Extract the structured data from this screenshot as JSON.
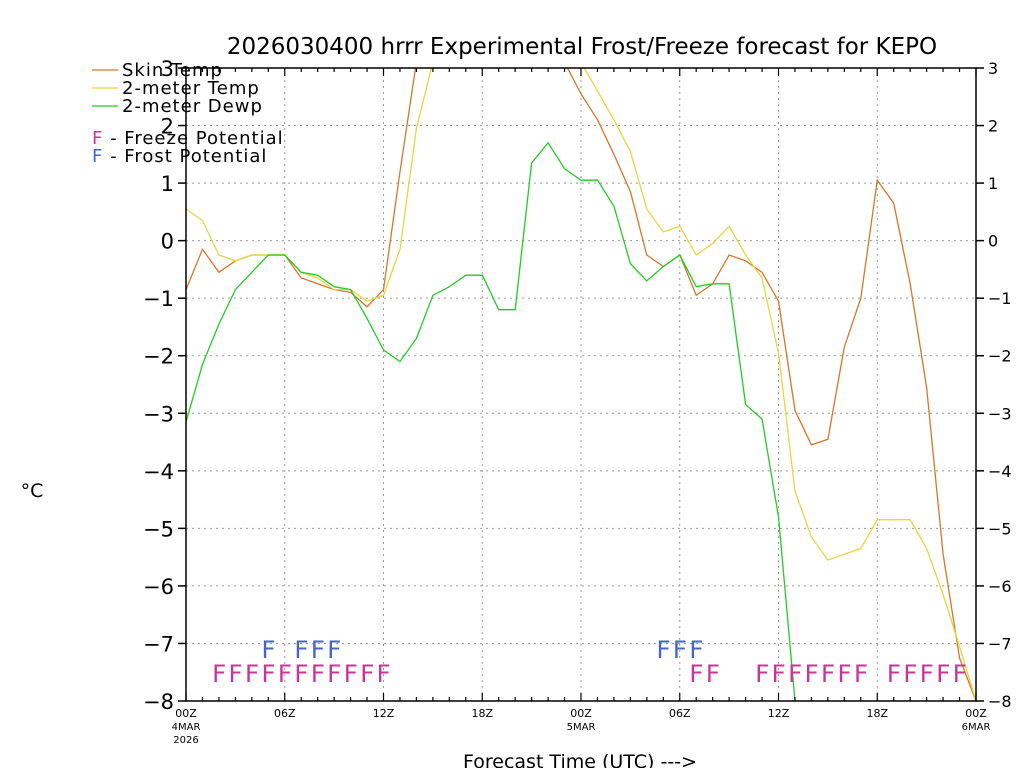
{
  "chart_data": {
    "type": "line",
    "title": "2026030400 hrrr Experimental Frost/Freeze forecast for KEPO",
    "xlabel": "Forecast Time (UTC) --->",
    "ylabel": "°C",
    "ylim": [
      -8,
      3
    ],
    "xlim": [
      0,
      48
    ],
    "grid": true,
    "yticks": [
      "-8",
      "-7",
      "-6",
      "-5",
      "-4",
      "-3",
      "-2",
      "-1",
      "0",
      "1",
      "2",
      "3"
    ],
    "xticks": [
      {
        "hour": 0,
        "label": "00Z",
        "sub1": "4MAR",
        "sub2": "2026"
      },
      {
        "hour": 6,
        "label": "06Z"
      },
      {
        "hour": 12,
        "label": "12Z"
      },
      {
        "hour": 18,
        "label": "18Z"
      },
      {
        "hour": 24,
        "label": "00Z",
        "sub1": "5MAR"
      },
      {
        "hour": 30,
        "label": "06Z"
      },
      {
        "hour": 36,
        "label": "12Z"
      },
      {
        "hour": 42,
        "label": "18Z"
      },
      {
        "hour": 48,
        "label": "00Z",
        "sub1": "6MAR"
      }
    ],
    "legend": {
      "placement": "top-left",
      "entries": [
        "Skin Temp",
        "2-meter Temp",
        "2-meter Dewp"
      ],
      "markers": [
        {
          "char": "F",
          "text": " - Freeze Potential",
          "color": "#cc3399"
        },
        {
          "char": "F",
          "text": " - Frost Potential",
          "color": "#4466cc"
        }
      ]
    },
    "series": [
      {
        "name": "Skin Temp",
        "color": "#d9752a",
        "x": [
          0,
          1,
          2,
          3,
          4,
          5,
          6,
          7,
          8,
          9,
          10,
          11,
          12,
          13,
          14,
          23,
          24,
          25,
          26,
          27,
          28,
          29,
          30,
          31,
          32,
          33,
          34,
          35,
          36,
          37,
          38,
          39,
          40,
          41,
          42,
          43,
          44,
          45,
          46,
          47,
          48
        ],
        "values": [
          -0.85,
          -0.15,
          -0.55,
          -0.35,
          -0.25,
          -0.25,
          -0.25,
          -0.65,
          -0.75,
          -0.85,
          -0.9,
          -1.15,
          -0.85,
          1.2,
          3.1,
          3.1,
          2.55,
          2.1,
          1.5,
          0.85,
          -0.25,
          -0.45,
          -0.25,
          -0.95,
          -0.75,
          -0.25,
          -0.35,
          -0.55,
          -1.05,
          -2.95,
          -3.55,
          -3.45,
          -1.85,
          -1.0,
          1.05,
          0.65,
          -0.75,
          -2.55,
          -5.45,
          -7.25,
          -8.0
        ]
      },
      {
        "name": "2-meter Temp",
        "color": "#e6d640",
        "x": [
          0,
          1,
          2,
          3,
          4,
          5,
          6,
          7,
          8,
          9,
          10,
          11,
          12,
          13,
          14,
          15,
          24,
          25,
          26,
          27,
          28,
          29,
          30,
          31,
          32,
          33,
          34,
          35,
          36,
          37,
          38,
          39,
          40,
          41,
          42,
          43,
          44,
          45,
          46,
          47,
          48
        ],
        "values": [
          0.55,
          0.35,
          -0.25,
          -0.35,
          -0.25,
          -0.25,
          -0.25,
          -0.55,
          -0.65,
          -0.85,
          -0.85,
          -1.05,
          -0.95,
          -0.15,
          1.95,
          3.1,
          3.1,
          2.6,
          2.1,
          1.55,
          0.55,
          0.15,
          0.25,
          -0.25,
          -0.05,
          0.25,
          -0.25,
          -0.65,
          -1.95,
          -4.35,
          -5.15,
          -5.55,
          -5.45,
          -5.35,
          -4.85,
          -4.85,
          -4.85,
          -5.35,
          -6.15,
          -7.05,
          -8.0
        ]
      },
      {
        "name": "2-meter Dewp",
        "color": "#22cc22",
        "x": [
          0,
          1,
          2,
          3,
          4,
          5,
          6,
          7,
          8,
          9,
          10,
          11,
          12,
          13,
          14,
          15,
          16,
          17,
          18,
          19,
          20,
          21,
          22,
          23,
          24,
          25,
          26,
          27,
          28,
          29,
          30,
          31,
          32,
          33,
          34,
          35,
          36,
          37
        ],
        "values": [
          -3.15,
          -2.15,
          -1.45,
          -0.85,
          -0.55,
          -0.25,
          -0.25,
          -0.55,
          -0.6,
          -0.8,
          -0.85,
          -1.35,
          -1.9,
          -2.1,
          -1.7,
          -0.95,
          -0.8,
          -0.6,
          -0.6,
          -1.2,
          -1.2,
          1.35,
          1.7,
          1.25,
          1.05,
          1.05,
          0.6,
          -0.4,
          -0.7,
          -0.45,
          -0.25,
          -0.8,
          -0.75,
          -0.75,
          -2.85,
          -3.1,
          -4.8,
          -8.0
        ]
      }
    ],
    "frost_hours": [
      5,
      7,
      8,
      9,
      29,
      30,
      31
    ],
    "freeze_hours": [
      2,
      3,
      4,
      5,
      6,
      7,
      8,
      9,
      10,
      11,
      12,
      31,
      32,
      35,
      36,
      37,
      38,
      39,
      40,
      41,
      43,
      44,
      45,
      46,
      47
    ]
  }
}
